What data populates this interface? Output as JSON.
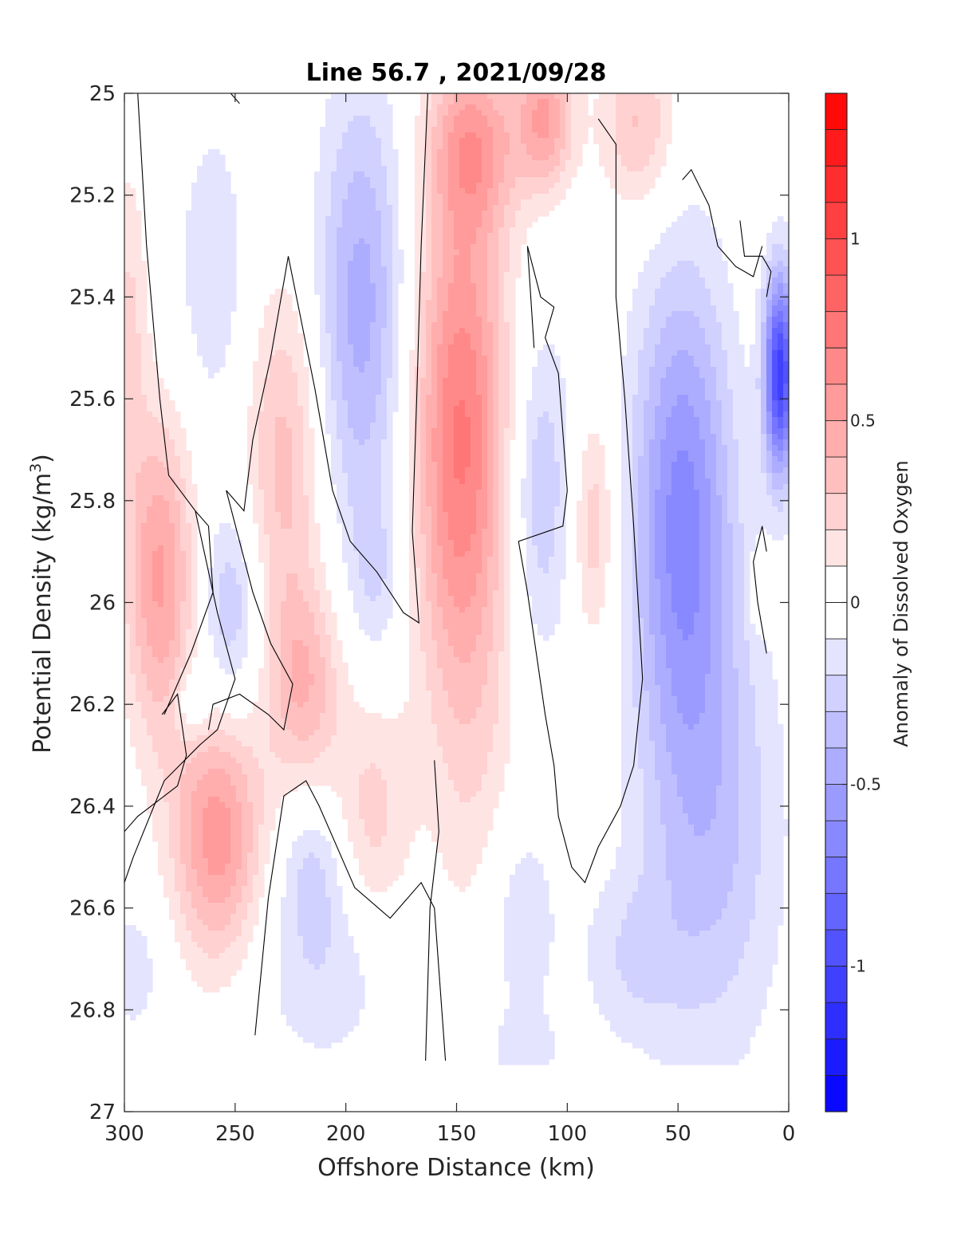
{
  "chart_data": {
    "type": "heatmap",
    "title": "Line 56.7 , 2021/09/28",
    "xlabel": "Offshore Distance (km)",
    "ylabel_main": "Potential Density (kg/m",
    "ylabel_sup": "3",
    "ylabel_close": ")",
    "colorbar_label": "Anomaly of Dissolved Oxygen",
    "xlim": [
      300,
      0
    ],
    "ylim": [
      25,
      27
    ],
    "y_reversed": true,
    "x_ticks": [
      300,
      250,
      200,
      150,
      100,
      50,
      0
    ],
    "x_tick_labels": [
      "300",
      "250",
      "200",
      "150",
      "100",
      "50",
      "0"
    ],
    "y_ticks": [
      25,
      25.2,
      25.4,
      25.6,
      25.8,
      26,
      26.2,
      26.4,
      26.6,
      26.8,
      27
    ],
    "y_tick_labels": [
      "25",
      "25.2",
      "25.4",
      "25.6",
      "25.8",
      "26",
      "26.2",
      "26.4",
      "26.6",
      "26.8",
      "27"
    ],
    "colorbar_range": [
      -1.4,
      1.4
    ],
    "colorbar_levels": 28,
    "colorbar_ticks": [
      1,
      0.5,
      0,
      -0.5,
      -1
    ],
    "colorbar_tick_labels": [
      "1",
      "0.5",
      "0",
      "-0.5",
      "-1"
    ],
    "colormap": {
      "negative": "#0000ff",
      "zero": "#ffffff",
      "positive": "#ff0000"
    },
    "contour_levels": [
      0
    ],
    "data_extent": {
      "x": [
        0,
        300
      ],
      "y_top": 25,
      "y_bottom": 26.9
    },
    "anomalies": [
      {
        "x": 193,
        "y": 25.42,
        "sx": 14,
        "sy": 0.3,
        "v": -0.45
      },
      {
        "x": 186,
        "y": 25.95,
        "sx": 9,
        "sy": 0.12,
        "v": -0.18
      },
      {
        "x": 148,
        "y": 25.68,
        "sx": 15,
        "sy": 0.36,
        "v": 0.72
      },
      {
        "x": 110,
        "y": 25.05,
        "sx": 9,
        "sy": 0.1,
        "v": 0.5
      },
      {
        "x": 142,
        "y": 25.1,
        "sx": 14,
        "sy": 0.12,
        "v": 0.45
      },
      {
        "x": 68,
        "y": 25.06,
        "sx": 12,
        "sy": 0.12,
        "v": 0.32
      },
      {
        "x": 112,
        "y": 25.78,
        "sx": 10,
        "sy": 0.22,
        "v": -0.3
      },
      {
        "x": 88,
        "y": 25.85,
        "sx": 7,
        "sy": 0.16,
        "v": 0.28
      },
      {
        "x": 48,
        "y": 25.82,
        "sx": 16,
        "sy": 0.33,
        "v": -0.62
      },
      {
        "x": 35,
        "y": 26.45,
        "sx": 22,
        "sy": 0.32,
        "v": -0.32
      },
      {
        "x": 4,
        "y": 25.55,
        "sx": 5,
        "sy": 0.14,
        "v": -1.05
      },
      {
        "x": 13,
        "y": 25.98,
        "sx": 4,
        "sy": 0.05,
        "v": 0.2
      },
      {
        "x": 228,
        "y": 25.72,
        "sx": 12,
        "sy": 0.24,
        "v": 0.34
      },
      {
        "x": 219,
        "y": 26.16,
        "sx": 12,
        "sy": 0.14,
        "v": 0.38
      },
      {
        "x": 188,
        "y": 26.42,
        "sx": 12,
        "sy": 0.16,
        "v": 0.24
      },
      {
        "x": 284,
        "y": 25.95,
        "sx": 11,
        "sy": 0.22,
        "v": 0.52
      },
      {
        "x": 298,
        "y": 25.45,
        "sx": 6,
        "sy": 0.22,
        "v": 0.22
      },
      {
        "x": 260,
        "y": 25.35,
        "sx": 12,
        "sy": 0.22,
        "v": -0.18
      },
      {
        "x": 252,
        "y": 26.02,
        "sx": 10,
        "sy": 0.14,
        "v": -0.3
      },
      {
        "x": 270,
        "y": 26.2,
        "sx": 5,
        "sy": 0.05,
        "v": -0.22
      },
      {
        "x": 258,
        "y": 26.46,
        "sx": 14,
        "sy": 0.17,
        "v": 0.56
      },
      {
        "x": 210,
        "y": 26.72,
        "sx": 22,
        "sy": 0.14,
        "v": -0.18
      },
      {
        "x": 215,
        "y": 26.52,
        "sx": 10,
        "sy": 0.1,
        "v": -0.2
      },
      {
        "x": 140,
        "y": 26.4,
        "sx": 14,
        "sy": 0.26,
        "v": 0.12
      },
      {
        "x": 122,
        "y": 26.62,
        "sx": 12,
        "sy": 0.16,
        "v": -0.2
      },
      {
        "x": 120,
        "y": 26.88,
        "sx": 12,
        "sy": 0.05,
        "v": -0.14
      },
      {
        "x": 296,
        "y": 26.72,
        "sx": 10,
        "sy": 0.1,
        "v": -0.16
      },
      {
        "x": 72,
        "y": 26.7,
        "sx": 16,
        "sy": 0.12,
        "v": -0.17
      }
    ],
    "zero_contours": [
      [
        [
          294,
          25.0
        ],
        [
          290,
          25.3
        ],
        [
          284,
          25.6
        ],
        [
          280,
          25.75
        ],
        [
          268,
          25.82
        ],
        [
          258,
          26.02
        ],
        [
          250,
          26.15
        ],
        [
          258,
          26.25
        ],
        [
          266,
          26.28
        ],
        [
          282,
          26.35
        ],
        [
          296,
          26.5
        ],
        [
          300,
          26.55
        ]
      ],
      [
        [
          268,
          25.82
        ],
        [
          262,
          25.85
        ],
        [
          260,
          25.98
        ],
        [
          270,
          26.1
        ],
        [
          282,
          26.22
        ]
      ],
      [
        [
          283,
          26.22
        ],
        [
          276,
          26.18
        ],
        [
          272,
          26.3
        ],
        [
          276,
          26.36
        ],
        [
          294,
          26.42
        ],
        [
          300,
          26.45
        ]
      ],
      [
        [
          252,
          25.0
        ],
        [
          248,
          25.02
        ]
      ],
      [
        [
          226,
          25.32
        ],
        [
          234,
          25.52
        ],
        [
          242,
          25.68
        ],
        [
          246,
          25.82
        ],
        [
          254,
          25.78
        ],
        [
          242,
          25.98
        ],
        [
          234,
          26.08
        ],
        [
          224,
          26.16
        ],
        [
          228,
          26.25
        ],
        [
          235,
          26.22
        ],
        [
          248,
          26.18
        ],
        [
          260,
          26.2
        ],
        [
          262,
          26.25
        ]
      ],
      [
        [
          226,
          25.32
        ],
        [
          214,
          25.58
        ],
        [
          206,
          25.78
        ],
        [
          198,
          25.88
        ],
        [
          186,
          25.94
        ],
        [
          174,
          26.02
        ],
        [
          167,
          26.04
        ],
        [
          170,
          25.86
        ],
        [
          168,
          25.6
        ],
        [
          166,
          25.3
        ],
        [
          163,
          25.0
        ]
      ],
      [
        [
          241,
          26.85
        ],
        [
          235,
          26.58
        ],
        [
          228,
          26.38
        ],
        [
          218,
          26.35
        ],
        [
          212,
          26.4
        ],
        [
          196,
          26.56
        ],
        [
          180,
          26.62
        ],
        [
          166,
          26.55
        ],
        [
          160,
          26.6
        ],
        [
          155,
          26.9
        ]
      ],
      [
        [
          160,
          26.31
        ],
        [
          158,
          26.45
        ],
        [
          162,
          26.6
        ],
        [
          164,
          26.9
        ]
      ],
      [
        [
          115,
          25.5
        ],
        [
          118,
          25.3
        ],
        [
          112,
          25.4
        ],
        [
          106,
          25.42
        ],
        [
          110,
          25.48
        ],
        [
          104,
          25.55
        ],
        [
          100,
          25.78
        ],
        [
          102,
          25.85
        ],
        [
          122,
          25.88
        ],
        [
          118,
          25.98
        ],
        [
          114,
          26.1
        ],
        [
          110,
          26.22
        ],
        [
          106,
          26.32
        ],
        [
          104,
          26.42
        ],
        [
          98,
          26.52
        ],
        [
          92,
          26.55
        ],
        [
          86,
          26.48
        ],
        [
          76,
          26.4
        ],
        [
          70,
          26.32
        ],
        [
          66,
          26.15
        ],
        [
          70,
          25.85
        ],
        [
          74,
          25.6
        ],
        [
          78,
          25.4
        ],
        [
          78,
          25.1
        ],
        [
          86,
          25.05
        ]
      ],
      [
        [
          22,
          25.25
        ],
        [
          20,
          25.32
        ],
        [
          12,
          25.32
        ],
        [
          8,
          25.35
        ],
        [
          10,
          25.4
        ]
      ],
      [
        [
          48,
          25.17
        ],
        [
          44,
          25.15
        ],
        [
          36,
          25.22
        ],
        [
          32,
          25.3
        ],
        [
          24,
          25.34
        ],
        [
          16,
          25.36
        ],
        [
          12,
          25.3
        ]
      ],
      [
        [
          10,
          26.1
        ],
        [
          14,
          26.0
        ],
        [
          16,
          25.92
        ],
        [
          12,
          25.85
        ],
        [
          10,
          25.9
        ]
      ]
    ]
  }
}
